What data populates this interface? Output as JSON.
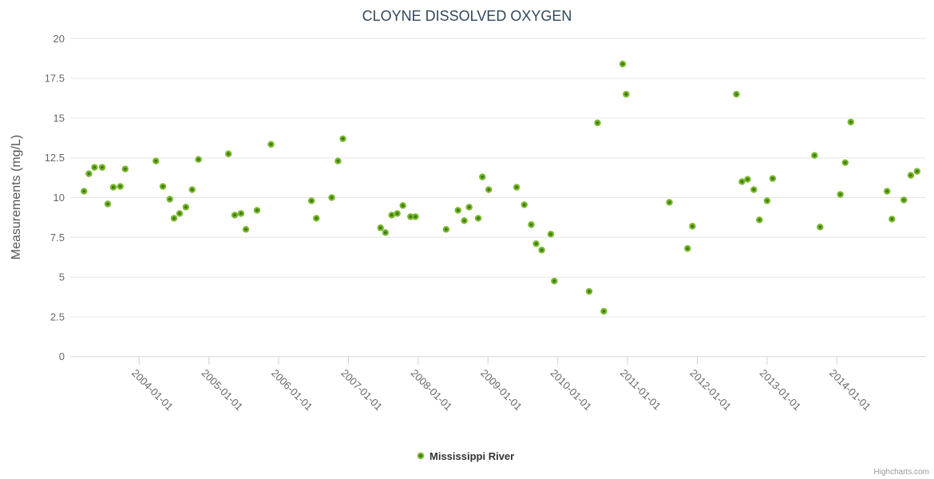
{
  "title": "CLOYNE DISSOLVED OXYGEN",
  "credits_label": "Highcharts.com",
  "legend": {
    "series_label": "Mississippi River"
  },
  "colors": {
    "marker_fill": "#77b82c",
    "marker_core": "#41790d",
    "title_color": "#33475b",
    "axis_label_color": "#666666",
    "y_axis_title_color": "#555555",
    "gridline_color": "#e6e6e6",
    "tick_color": "#c9d4e4",
    "axis_line_color": "#d8d8d8",
    "legend_text_color": "#333333",
    "credits_color": "#999999",
    "background": "#ffffff"
  },
  "chart_data": {
    "type": "scatter",
    "title": "CLOYNE DISSOLVED OXYGEN",
    "xlabel": "",
    "ylabel": "Measurements (mg/L)",
    "grid": "horizontal-only",
    "legend_position": "bottom-center",
    "x_axis": {
      "type": "datetime",
      "unit": "decimal_year",
      "tick_years": [
        2004,
        2005,
        2006,
        2007,
        2008,
        2009,
        2010,
        2011,
        2012,
        2013,
        2014
      ],
      "tick_labels": [
        "2004-01-01",
        "2005-01-01",
        "2006-01-01",
        "2007-01-01",
        "2008-01-01",
        "2009-01-01",
        "2010-01-01",
        "2011-01-01",
        "2012-01-01",
        "2013-01-01",
        "2014-01-01"
      ],
      "label_rotation_deg": 45,
      "range": [
        2003.15,
        2015.3
      ]
    },
    "y_axis": {
      "min": 0,
      "max": 20,
      "tick_interval": 2.5,
      "ticks": [
        0,
        2.5,
        5,
        7.5,
        10,
        12.5,
        15,
        17.5,
        20
      ],
      "tick_labels": [
        "0",
        "2.5",
        "5",
        "7.5",
        "10",
        "12.5",
        "15",
        "17.5",
        "20"
      ]
    },
    "series": [
      {
        "name": "Mississippi River",
        "marker_color": "#77b82c",
        "points": [
          [
            2003.21,
            10.4
          ],
          [
            2003.28,
            11.5
          ],
          [
            2003.36,
            11.9
          ],
          [
            2003.47,
            11.9
          ],
          [
            2003.55,
            9.6
          ],
          [
            2003.63,
            10.65
          ],
          [
            2003.73,
            10.7
          ],
          [
            2003.8,
            11.8
          ],
          [
            2004.24,
            12.3
          ],
          [
            2004.34,
            10.7
          ],
          [
            2004.44,
            9.9
          ],
          [
            2004.5,
            8.7
          ],
          [
            2004.58,
            9.0
          ],
          [
            2004.67,
            9.4
          ],
          [
            2004.76,
            10.5
          ],
          [
            2004.85,
            12.4
          ],
          [
            2005.28,
            12.75
          ],
          [
            2005.37,
            8.9
          ],
          [
            2005.46,
            9.0
          ],
          [
            2005.53,
            8.0
          ],
          [
            2005.69,
            9.2
          ],
          [
            2005.89,
            13.35
          ],
          [
            2006.47,
            9.8
          ],
          [
            2006.54,
            8.7
          ],
          [
            2006.76,
            10.0
          ],
          [
            2006.85,
            12.3
          ],
          [
            2006.92,
            13.7
          ],
          [
            2007.46,
            8.1
          ],
          [
            2007.53,
            7.8
          ],
          [
            2007.62,
            8.9
          ],
          [
            2007.7,
            9.0
          ],
          [
            2007.78,
            9.5
          ],
          [
            2007.89,
            8.8
          ],
          [
            2007.96,
            8.8
          ],
          [
            2008.4,
            8.0
          ],
          [
            2008.57,
            9.2
          ],
          [
            2008.66,
            8.55
          ],
          [
            2008.73,
            9.4
          ],
          [
            2008.86,
            8.7
          ],
          [
            2008.92,
            11.3
          ],
          [
            2009.01,
            10.5
          ],
          [
            2009.41,
            10.65
          ],
          [
            2009.52,
            9.55
          ],
          [
            2009.62,
            8.3
          ],
          [
            2009.69,
            7.1
          ],
          [
            2009.77,
            6.7
          ],
          [
            2009.9,
            7.7
          ],
          [
            2009.95,
            4.75
          ],
          [
            2010.45,
            4.1
          ],
          [
            2010.57,
            14.7
          ],
          [
            2010.66,
            2.85
          ],
          [
            2010.93,
            18.4
          ],
          [
            2010.98,
            16.5
          ],
          [
            2011.6,
            9.7
          ],
          [
            2011.86,
            6.8
          ],
          [
            2011.93,
            8.2
          ],
          [
            2012.56,
            16.5
          ],
          [
            2012.64,
            11.0
          ],
          [
            2012.72,
            11.15
          ],
          [
            2012.81,
            10.5
          ],
          [
            2012.89,
            8.6
          ],
          [
            2013.0,
            9.8
          ],
          [
            2013.08,
            11.2
          ],
          [
            2013.68,
            12.65
          ],
          [
            2013.76,
            8.15
          ],
          [
            2014.05,
            10.2
          ],
          [
            2014.12,
            12.2
          ],
          [
            2014.2,
            14.75
          ],
          [
            2014.72,
            10.4
          ],
          [
            2014.79,
            8.65
          ],
          [
            2014.96,
            9.85
          ],
          [
            2015.06,
            11.4
          ],
          [
            2015.15,
            11.65
          ]
        ]
      }
    ]
  }
}
